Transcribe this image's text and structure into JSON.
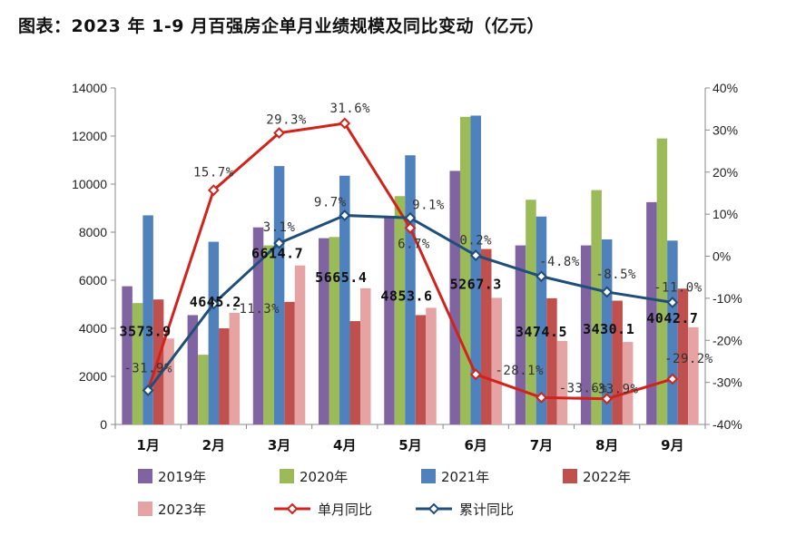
{
  "page_title": "图表：2023 年 1-9 月百强房企单月业绩规模及同比变动（亿元）",
  "chart_data": {
    "type": "bar",
    "title": "图表：2023 年 1-9 月百强房企单月业绩规模及同比变动（亿元）",
    "categories": [
      "1月",
      "2月",
      "3月",
      "4月",
      "5月",
      "6月",
      "7月",
      "8月",
      "9月"
    ],
    "ylim": [
      0,
      14000
    ],
    "yticks": [
      0,
      2000,
      4000,
      6000,
      8000,
      10000,
      12000,
      14000
    ],
    "ytick_labels": [
      "0",
      "2000",
      "4000",
      "6000",
      "8000",
      "10000",
      "12000",
      "14000"
    ],
    "y2lim": [
      -40,
      40
    ],
    "y2ticks": [
      -40,
      -30,
      -20,
      -10,
      0,
      10,
      20,
      30,
      40
    ],
    "y2tick_labels": [
      "-40%",
      "-30%",
      "-20%",
      "-10%",
      "0%",
      "10%",
      "20%",
      "30%",
      "40%"
    ],
    "series": [
      {
        "name": "2019年",
        "kind": "bar",
        "color": "#8064a2",
        "values": [
          5750,
          4550,
          8200,
          7750,
          8600,
          10550,
          7450,
          7450,
          9250
        ]
      },
      {
        "name": "2020年",
        "kind": "bar",
        "color": "#9bbb59",
        "values": [
          5050,
          2900,
          7450,
          7800,
          9500,
          12800,
          9350,
          9750,
          11900
        ]
      },
      {
        "name": "2021年",
        "kind": "bar",
        "color": "#4f81bd",
        "values": [
          8700,
          7600,
          10750,
          10350,
          11200,
          12850,
          8650,
          7700,
          7650
        ]
      },
      {
        "name": "2022年",
        "kind": "bar",
        "color": "#c0504d",
        "values": [
          5200,
          4000,
          5100,
          4300,
          4550,
          7300,
          5250,
          5150,
          5650
        ]
      },
      {
        "name": "2023年",
        "kind": "bar",
        "color": "#e6a3a3",
        "values": [
          3573.9,
          4645.2,
          6614.7,
          5665.4,
          4853.6,
          5267.3,
          3474.5,
          3430.1,
          4042.7
        ]
      },
      {
        "name": "单月同比",
        "kind": "line",
        "axis": "right",
        "color": "#d0231c",
        "values": [
          -31.9,
          15.7,
          29.3,
          31.6,
          6.7,
          -28.1,
          -33.6,
          -33.9,
          -29.2
        ]
      },
      {
        "name": "累计同比",
        "kind": "line",
        "axis": "right",
        "color": "#1f4e79",
        "values": [
          -31.9,
          -11.3,
          3.1,
          9.7,
          9.1,
          0.2,
          -4.8,
          -8.5,
          -11.0
        ]
      }
    ],
    "value_labels_2023": [
      "3573.9",
      "4645.2",
      "6614.7",
      "5665.4",
      "4853.6",
      "5267.3",
      "3474.5",
      "3430.1",
      "4042.7"
    ],
    "monthly_yoy_labels": [
      "-31.9%",
      "15.7%",
      "29.3%",
      "31.6%",
      "6.7%",
      "-28.1%",
      "-33.6%",
      "-33.9%",
      "-29.2%"
    ],
    "cumulative_yoy_labels": [
      "-31.9%",
      "-11.3%",
      "3.1%",
      "9.7%",
      "9.1%",
      "0.2%",
      "-4.8%",
      "-8.5%",
      "-11.0%"
    ],
    "legend": [
      "2019年",
      "2020年",
      "2021年",
      "2022年",
      "2023年",
      "单月同比",
      "累计同比"
    ]
  }
}
